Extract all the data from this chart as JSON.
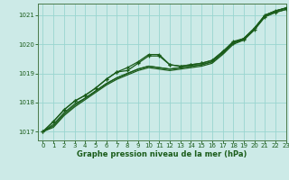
{
  "xlabel": "Graphe pression niveau de la mer (hPa)",
  "xlim": [
    -0.5,
    23
  ],
  "ylim": [
    1016.7,
    1021.4
  ],
  "yticks": [
    1017,
    1018,
    1019,
    1020,
    1021
  ],
  "xticks": [
    0,
    1,
    2,
    3,
    4,
    5,
    6,
    7,
    8,
    9,
    10,
    11,
    12,
    13,
    14,
    15,
    16,
    17,
    18,
    19,
    20,
    21,
    22,
    23
  ],
  "background_color": "#cceae7",
  "grid_color": "#99d5d0",
  "line_color": "#1a5c1a",
  "series_smooth1": [
    1017.0,
    1017.15,
    1017.55,
    1017.85,
    1018.1,
    1018.35,
    1018.6,
    1018.8,
    1018.95,
    1019.1,
    1019.2,
    1019.15,
    1019.1,
    1019.15,
    1019.2,
    1019.25,
    1019.35,
    1019.65,
    1020.0,
    1020.15,
    1020.5,
    1020.95,
    1021.1,
    1021.2
  ],
  "series_smooth2": [
    1017.0,
    1017.2,
    1017.6,
    1017.9,
    1018.15,
    1018.4,
    1018.65,
    1018.85,
    1019.0,
    1019.15,
    1019.25,
    1019.2,
    1019.15,
    1019.2,
    1019.25,
    1019.3,
    1019.4,
    1019.7,
    1020.05,
    1020.2,
    1020.55,
    1021.0,
    1021.15,
    1021.25
  ],
  "series_smooth3": [
    1017.0,
    1017.25,
    1017.65,
    1017.95,
    1018.15,
    1018.4,
    1018.65,
    1018.85,
    1019.0,
    1019.15,
    1019.25,
    1019.2,
    1019.15,
    1019.2,
    1019.25,
    1019.3,
    1019.4,
    1019.7,
    1020.05,
    1020.2,
    1020.55,
    1021.0,
    1021.15,
    1021.25
  ],
  "series_marker1": [
    1017.0,
    1017.35,
    1017.75,
    1018.05,
    1018.25,
    1018.5,
    1018.8,
    1019.05,
    1019.2,
    1019.4,
    1019.65,
    1019.65,
    1019.3,
    1019.25,
    1019.3,
    1019.35,
    1019.45,
    1019.75,
    1020.1,
    1020.2,
    1020.55,
    1021.0,
    1021.15,
    1021.25
  ],
  "series_marker2": [
    1017.0,
    1017.35,
    1017.75,
    1018.05,
    1018.25,
    1018.5,
    1018.8,
    1019.05,
    1019.1,
    1019.35,
    1019.6,
    1019.6,
    1019.3,
    1019.25,
    1019.3,
    1019.35,
    1019.45,
    1019.75,
    1020.05,
    1020.15,
    1020.5,
    1020.95,
    1021.1,
    1021.2
  ]
}
